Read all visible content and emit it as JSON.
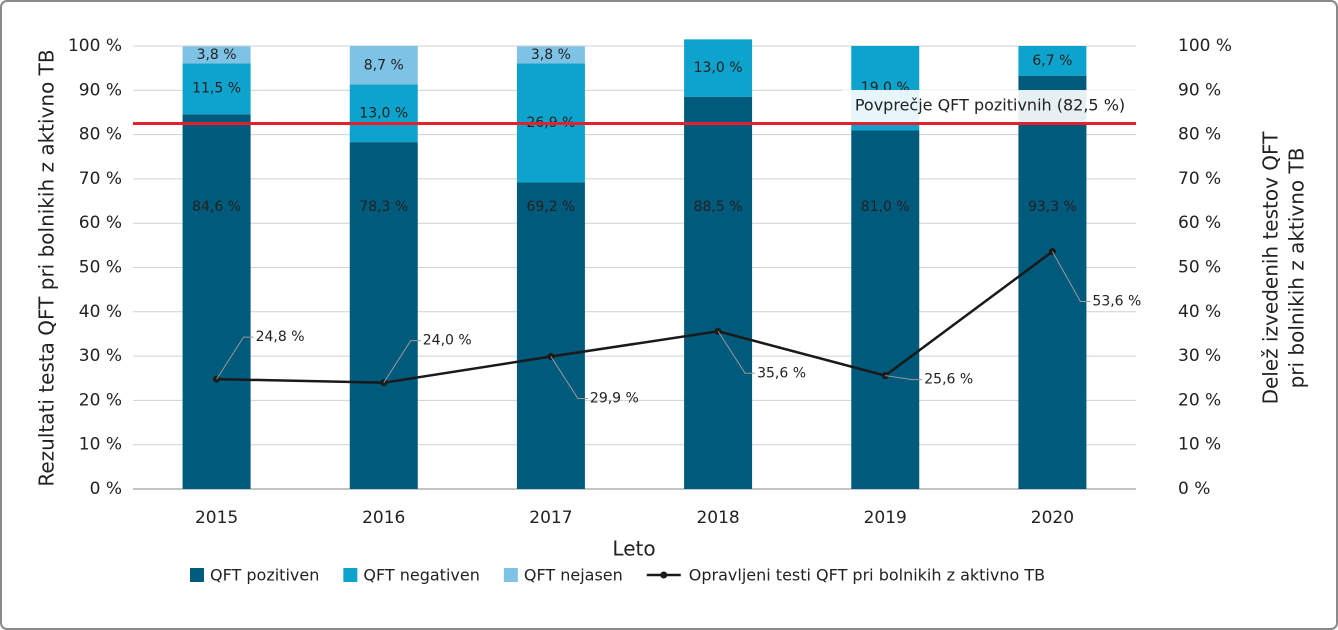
{
  "chart_data": {
    "type": "bar",
    "stacked": true,
    "categories": [
      "2015",
      "2016",
      "2017",
      "2018",
      "2019",
      "2020"
    ],
    "series": [
      {
        "name": "QFT pozitiven",
        "color": "#005a7c",
        "values": [
          84.6,
          78.3,
          69.2,
          88.5,
          81.0,
          93.3
        ],
        "value_labels": [
          "84,6 %",
          "78,3 %",
          "69,2 %",
          "88,5 %",
          "81,0 %",
          "93,3 %"
        ]
      },
      {
        "name": "QFT negativen",
        "color": "#0ea3cc",
        "values": [
          11.5,
          13.0,
          26.9,
          13.0,
          19.0,
          6.7
        ],
        "value_labels": [
          "11,5 %",
          "13,0 %",
          "26,9 %",
          "13,0 %",
          "19,0 %",
          "6,7 %"
        ]
      },
      {
        "name": "QFT nejasen",
        "color": "#7ec3e5",
        "values": [
          3.8,
          8.7,
          3.8,
          null,
          null,
          null
        ],
        "value_labels": [
          "3,8 %",
          "8,7 %",
          "3,8 %",
          null,
          null,
          null
        ]
      },
      {
        "name": "Opravljeni testi QFT pri bolnikih z aktivno TB",
        "type": "line",
        "axis": "y2",
        "color": "#1a1a1a",
        "values": [
          24.8,
          24.0,
          29.9,
          35.6,
          25.6,
          53.6
        ],
        "value_labels": [
          "24,8 %",
          "24,0 %",
          "29,9 %",
          "35,6 %",
          "25,6 %",
          "53,6 %"
        ]
      }
    ],
    "reference_line": {
      "value": 82.5,
      "label": "Povprečje QFT pozitivnih (82,5 %)",
      "color": "#e3202b"
    },
    "x_label": "Leto",
    "y_label": "Rezultati testa QFT pri bolnikih z aktivno TB",
    "y2_label": [
      "Delež izvedenih testov QFT",
      "pri bolnikih z aktivno TB"
    ],
    "ylim": [
      0,
      100
    ],
    "yticks": [
      {
        "value": 0,
        "label": "0 %"
      },
      {
        "value": 10,
        "label": "10 %"
      },
      {
        "value": 20,
        "label": "20 %"
      },
      {
        "value": 30,
        "label": "30 %"
      },
      {
        "value": 40,
        "label": "40 %"
      },
      {
        "value": 50,
        "label": "50 %"
      },
      {
        "value": 60,
        "label": "60 %"
      },
      {
        "value": 70,
        "label": "70 %"
      },
      {
        "value": 80,
        "label": "80 %"
      },
      {
        "value": 90,
        "label": "90 %"
      },
      {
        "value": 100,
        "label": "100 %"
      }
    ],
    "y2lim": [
      0,
      100
    ],
    "y2ticks": [
      {
        "value": 0,
        "label": "0 %"
      },
      {
        "value": 10,
        "label": "10 %"
      },
      {
        "value": 20,
        "label": "20 %"
      },
      {
        "value": 30,
        "label": "30 %"
      },
      {
        "value": 40,
        "label": "40 %"
      },
      {
        "value": 50,
        "label": "50 %"
      },
      {
        "value": 60,
        "label": "60 %"
      },
      {
        "value": 70,
        "label": "70 %"
      },
      {
        "value": 80,
        "label": "80 %"
      },
      {
        "value": 90,
        "label": "90 %"
      },
      {
        "value": 100,
        "label": "100 %"
      }
    ],
    "grid": true
  }
}
